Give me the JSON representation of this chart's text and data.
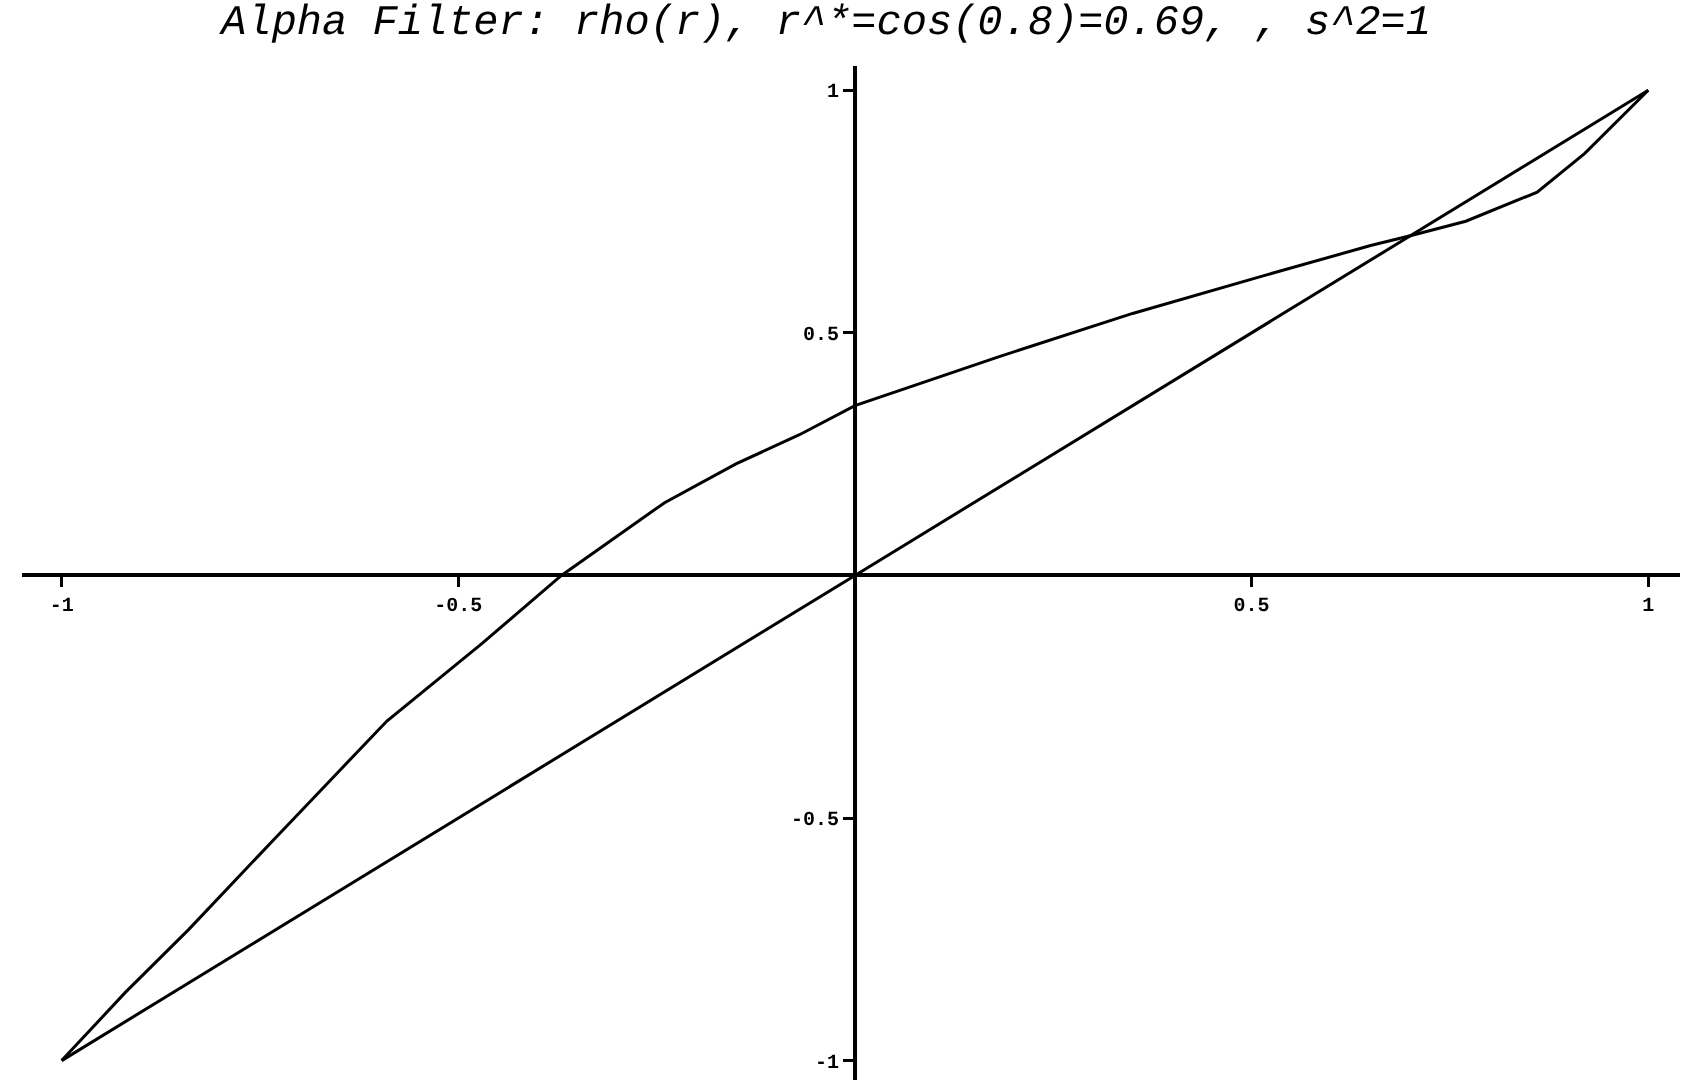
{
  "chart_data": {
    "type": "line",
    "title": "Alpha Filter: rho(r), r^*=cos(0.8)=0.69, , s^2=1",
    "series": [
      {
        "color": "#000000",
        "x": [
          -1,
          -0.92,
          -0.84,
          -0.73,
          -0.66,
          -0.59,
          -0.47,
          -0.37,
          -0.24,
          -0.15,
          -0.07,
          0,
          0.18,
          0.35,
          0.52,
          0.65,
          0.7,
          0.77,
          0.86,
          0.92,
          1
        ],
        "values": [
          -1,
          -0.86,
          -0.73,
          -0.54,
          -0.42,
          -0.3,
          -0.14,
          0,
          0.15,
          0.23,
          0.29,
          0.35,
          0.45,
          0.54,
          0.62,
          0.68,
          0.7,
          0.73,
          0.79,
          0.87,
          1
        ]
      },
      {
        "color": "#000000",
        "x": [
          -1,
          0,
          1
        ],
        "values": [
          -1,
          0,
          1
        ]
      }
    ],
    "xlim": [
      -1.05,
      1.04
    ],
    "ylim": [
      -1.04,
      1.05
    ],
    "xticks": [
      -1,
      -0.5,
      0.5,
      1
    ],
    "yticks": [
      -1,
      -0.5,
      0.5,
      1
    ]
  }
}
